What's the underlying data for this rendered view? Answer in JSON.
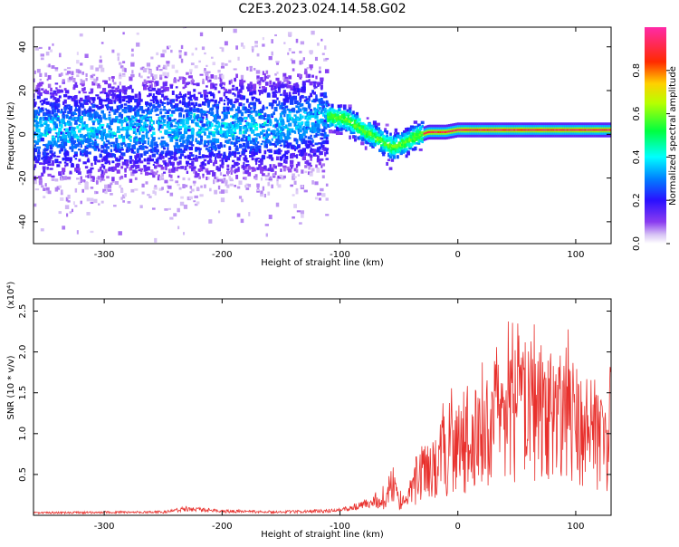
{
  "title": "C2E3.2023.024.14.58.G02",
  "colors": {
    "snr_line": "#e8302c",
    "axis": "#000000",
    "background": "#ffffff"
  },
  "chart_data": [
    {
      "type": "heatmap",
      "xlabel": "Height of straight line (km)",
      "ylabel": "Frequency (Hz)",
      "xlim": [
        -360,
        130
      ],
      "ylim": [
        -50,
        49
      ],
      "x_ticks": [
        -300,
        -200,
        -100,
        0,
        100
      ],
      "y_ticks": [
        -40,
        -20,
        0,
        20,
        40
      ],
      "colorbar": {
        "label": "Normalized spectral amplitude",
        "range": [
          0,
          1
        ],
        "ticks": [
          "0.0",
          "0.2",
          "0.4",
          "0.6",
          "0.8"
        ],
        "tick_values": [
          0.0,
          0.2,
          0.4,
          0.6,
          0.8
        ],
        "colormap": "rainbow (white → violet → blue → cyan → green → yellow → red → pink)"
      },
      "features": {
        "center_frequency_trace": [
          [
            -360,
            2
          ],
          [
            -300,
            2
          ],
          [
            -250,
            3
          ],
          [
            -200,
            3
          ],
          [
            -150,
            4
          ],
          [
            -110,
            8
          ],
          [
            -95,
            7
          ],
          [
            -80,
            2
          ],
          [
            -65,
            -3
          ],
          [
            -55,
            -6
          ],
          [
            -45,
            -4
          ],
          [
            -35,
            -1
          ],
          [
            -25,
            1
          ],
          [
            -10,
            1
          ],
          [
            0,
            2
          ],
          [
            30,
            2
          ],
          [
            60,
            2
          ],
          [
            100,
            2
          ],
          [
            130,
            2
          ]
        ],
        "spread_hz_by_segment": [
          {
            "from": -360,
            "to": -110,
            "spread": 45
          },
          {
            "from": -110,
            "to": -30,
            "spread": 10
          },
          {
            "from": -30,
            "to": 130,
            "spread": 2
          }
        ]
      }
    },
    {
      "type": "line",
      "xlabel": "Height of straight line (km)",
      "ylabel": "SNR (10 * v/v)",
      "y_multiplier": "(x10⁴)",
      "xlim": [
        -360,
        130
      ],
      "ylim": [
        0,
        2.65
      ],
      "x_ticks": [
        -300,
        -200,
        -100,
        0,
        100
      ],
      "y_ticks": [
        0.5,
        1.0,
        1.5,
        2.0,
        2.5
      ],
      "envelope": [
        [
          -360,
          0.03
        ],
        [
          -250,
          0.04
        ],
        [
          -230,
          0.08
        ],
        [
          -200,
          0.05
        ],
        [
          -150,
          0.04
        ],
        [
          -100,
          0.06
        ],
        [
          -75,
          0.15
        ],
        [
          -60,
          0.3
        ],
        [
          -55,
          0.45
        ],
        [
          -50,
          0.25
        ],
        [
          -45,
          0.15
        ],
        [
          -35,
          0.55
        ],
        [
          -25,
          0.7
        ],
        [
          -10,
          0.9
        ],
        [
          0,
          1.0
        ],
        [
          15,
          1.1
        ],
        [
          30,
          1.35
        ],
        [
          50,
          1.6
        ],
        [
          65,
          1.55
        ],
        [
          80,
          1.45
        ],
        [
          100,
          1.35
        ],
        [
          115,
          1.2
        ],
        [
          130,
          1.1
        ]
      ]
    }
  ]
}
